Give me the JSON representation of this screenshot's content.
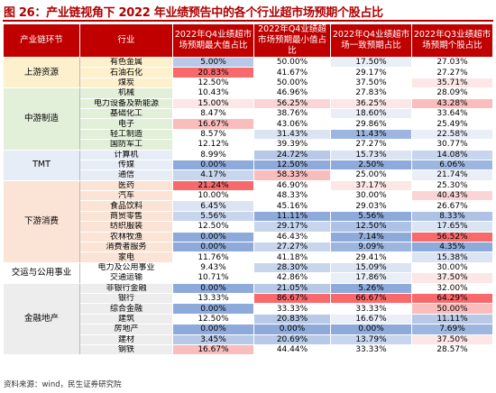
{
  "title": "图 26：产业链视角下 2022 年业绩预告中的各个行业超市场预期个股占比",
  "source": "资料来源：wind，民生证券研究院",
  "headers": [
    "产业链环节",
    "行业",
    "2022年Q4业绩超市场预期最大值占比",
    "2022年Q4业绩超市场预期最小值占比",
    "2022年Q4业绩超市场一致预期占比",
    "2022年Q3业绩超市场预期个股占比"
  ],
  "sections": [
    {
      "name": "上游资源",
      "color": "#fdf0cc",
      "rows": [
        {
          "industry": "有色金属",
          "v": [
            "5.00%",
            "50.00%",
            "17.50%",
            "27.03%"
          ],
          "c": [
            "#b7c9e7",
            "#ffffff",
            "#e9eef7",
            "#ffffff"
          ]
        },
        {
          "industry": "石油石化",
          "v": [
            "20.83%",
            "41.67%",
            "29.17%",
            "27.27%"
          ],
          "c": [
            "#f8696b",
            "#ffffff",
            "#ffffff",
            "#ffffff"
          ]
        },
        {
          "industry": "煤炭",
          "v": [
            "12.50%",
            "50.00%",
            "37.50%",
            "35.71%"
          ],
          "c": [
            "#ffffff",
            "#ffffff",
            "#ffffff",
            "#fce6e6"
          ]
        }
      ]
    },
    {
      "name": "中游制造",
      "color": "#e2efd9",
      "rows": [
        {
          "industry": "机械",
          "v": [
            "10.43%",
            "46.96%",
            "27.83%",
            "28.09%"
          ],
          "c": [
            "#ffffff",
            "#ffffff",
            "#ffffff",
            "#ffffff"
          ]
        },
        {
          "industry": "电力设备及新能源",
          "v": [
            "15.00%",
            "56.25%",
            "36.25%",
            "43.28%"
          ],
          "c": [
            "#fce6e6",
            "#fbd5d5",
            "#fce6e6",
            "#f9bdbd"
          ]
        },
        {
          "industry": "基础化工",
          "v": [
            "8.47%",
            "38.76%",
            "18.60%",
            "33.64%"
          ],
          "c": [
            "#ffffff",
            "#ffffff",
            "#e9eef7",
            "#ffffff"
          ]
        },
        {
          "industry": "电子",
          "v": [
            "16.67%",
            "43.06%",
            "29.86%",
            "25.49%"
          ],
          "c": [
            "#f9bdbd",
            "#ffffff",
            "#ffffff",
            "#ffffff"
          ]
        },
        {
          "industry": "轻工制造",
          "v": [
            "8.57%",
            "31.43%",
            "11.43%",
            "22.58%"
          ],
          "c": [
            "#ffffff",
            "#dbe4f3",
            "#9db6e0",
            "#e9eef7"
          ]
        },
        {
          "industry": "国防军工",
          "v": [
            "12.12%",
            "39.39%",
            "27.27%",
            "30.77%"
          ],
          "c": [
            "#ffffff",
            "#ffffff",
            "#ffffff",
            "#ffffff"
          ]
        }
      ]
    },
    {
      "name": "TMT",
      "color": "#e7edf6",
      "rows": [
        {
          "industry": "计算机",
          "v": [
            "8.99%",
            "24.72%",
            "15.73%",
            "14.08%"
          ],
          "c": [
            "#ffffff",
            "#b7c9e7",
            "#dbe4f3",
            "#c7d5ed"
          ]
        },
        {
          "industry": "传媒",
          "v": [
            "0.00%",
            "12.50%",
            "2.50%",
            "6.06%"
          ],
          "c": [
            "#8eaadb",
            "#8eaadb",
            "#8eaadb",
            "#9db6e0"
          ]
        },
        {
          "industry": "通信",
          "v": [
            "4.17%",
            "58.33%",
            "25.00%",
            "21.74%"
          ],
          "c": [
            "#c7d5ed",
            "#f9bdbd",
            "#ffffff",
            "#e9eef7"
          ]
        }
      ]
    },
    {
      "name": "下游消费",
      "color": "#fbe4d5",
      "rows": [
        {
          "industry": "医药",
          "v": [
            "21.24%",
            "46.90%",
            "37.17%",
            "25.30%"
          ],
          "c": [
            "#f8696b",
            "#ffffff",
            "#fce6e6",
            "#ffffff"
          ]
        },
        {
          "industry": "汽车",
          "v": [
            "10.00%",
            "48.33%",
            "30.00%",
            "40.43%"
          ],
          "c": [
            "#ffffff",
            "#ffffff",
            "#ffffff",
            "#fbd5d5"
          ]
        },
        {
          "industry": "食品饮料",
          "v": [
            "6.45%",
            "45.16%",
            "29.03%",
            "26.67%"
          ],
          "c": [
            "#dbe4f3",
            "#ffffff",
            "#ffffff",
            "#ffffff"
          ]
        },
        {
          "industry": "商贸零售",
          "v": [
            "5.56%",
            "11.11%",
            "5.56%",
            "8.33%"
          ],
          "c": [
            "#c7d5ed",
            "#8eaadb",
            "#8eaadb",
            "#adc2e5"
          ]
        },
        {
          "industry": "纺织服装",
          "v": [
            "12.50%",
            "29.17%",
            "12.50%",
            "17.65%"
          ],
          "c": [
            "#ffffff",
            "#c7d5ed",
            "#adc2e5",
            "#dbe4f3"
          ]
        },
        {
          "industry": "农林牧渔",
          "v": [
            "0.00%",
            "46.43%",
            "7.14%",
            "56.52%"
          ],
          "c": [
            "#8eaadb",
            "#ffffff",
            "#8eaadb",
            "#f8696b"
          ]
        },
        {
          "industry": "消费者服务",
          "v": [
            "0.00%",
            "27.27%",
            "9.09%",
            "4.35%"
          ],
          "c": [
            "#8eaadb",
            "#c7d5ed",
            "#9db6e0",
            "#8eaadb"
          ]
        },
        {
          "industry": "家电",
          "v": [
            "11.76%",
            "41.18%",
            "29.41%",
            "15.38%"
          ],
          "c": [
            "#ffffff",
            "#ffffff",
            "#ffffff",
            "#dbe4f3"
          ]
        }
      ]
    },
    {
      "name": "交运与公用事业",
      "color": "#ffffff",
      "rows": [
        {
          "industry": "电力及公用事业",
          "v": [
            "9.43%",
            "28.30%",
            "15.09%",
            "30.00%"
          ],
          "c": [
            "#ffffff",
            "#c7d5ed",
            "#dbe4f3",
            "#ffffff"
          ]
        },
        {
          "industry": "交通运输",
          "v": [
            "10.71%",
            "42.86%",
            "17.86%",
            "37.50%"
          ],
          "c": [
            "#ffffff",
            "#ffffff",
            "#e9eef7",
            "#fce6e6"
          ]
        }
      ]
    },
    {
      "name": "金融地产",
      "color": "#ededed",
      "rows": [
        {
          "industry": "非银行金融",
          "v": [
            "0.00%",
            "21.05%",
            "5.26%",
            "32.00%"
          ],
          "c": [
            "#8eaadb",
            "#b7c9e7",
            "#8eaadb",
            "#ffffff"
          ]
        },
        {
          "industry": "银行",
          "v": [
            "13.33%",
            "86.67%",
            "66.67%",
            "64.29%"
          ],
          "c": [
            "#ffffff",
            "#f8696b",
            "#f8696b",
            "#f8696b"
          ]
        },
        {
          "industry": "综合金融",
          "v": [
            "0.00%",
            "33.33%",
            "33.33%",
            "50.00%"
          ],
          "c": [
            "#8eaadb",
            "#ffffff",
            "#ffffff",
            "#f9bdbd"
          ]
        },
        {
          "industry": "建筑",
          "v": [
            "12.50%",
            "20.83%",
            "16.67%",
            "11.11%"
          ],
          "c": [
            "#ffffff",
            "#b7c9e7",
            "#e9eef7",
            "#b7c9e7"
          ]
        },
        {
          "industry": "房地产",
          "v": [
            "0.00%",
            "0.00%",
            "0.00%",
            "7.69%"
          ],
          "c": [
            "#8eaadb",
            "#8eaadb",
            "#8eaadb",
            "#9db6e0"
          ]
        },
        {
          "industry": "建材",
          "v": [
            "3.45%",
            "20.69%",
            "13.79%",
            "37.50%"
          ],
          "c": [
            "#b7c9e7",
            "#b7c9e7",
            "#c7d5ed",
            "#fce6e6"
          ]
        },
        {
          "industry": "钢铁",
          "v": [
            "16.67%",
            "44.44%",
            "33.33%",
            "28.57%"
          ],
          "c": [
            "#f9bdbd",
            "#ffffff",
            "#ffffff",
            "#ffffff"
          ]
        }
      ]
    }
  ]
}
